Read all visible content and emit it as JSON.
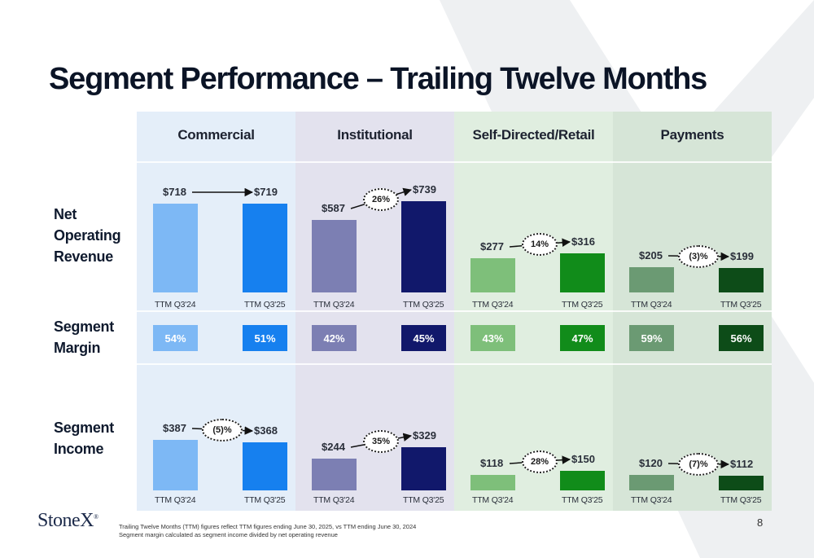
{
  "title": "Segment Performance – Trailing Twelve Months",
  "row_labels": {
    "net_operating_revenue": [
      "Net",
      "Operating",
      "Revenue"
    ],
    "segment_margin": [
      "Segment",
      "Margin"
    ],
    "segment_income": [
      "Segment",
      "Income"
    ]
  },
  "colors": {
    "commercial_bg": "#e4eef9",
    "institutional_bg": "#e3e2ee",
    "selfdirected_bg": "#e0eee0",
    "payments_bg": "#d6e5d7",
    "commercial_prior": "#7db8f5",
    "commercial_current": "#1680ef",
    "institutional_prior": "#7c7fb3",
    "institutional_current": "#11186b",
    "selfdirected_prior": "#7ebf7a",
    "selfdirected_current": "#118c1a",
    "payments_prior": "#6b9a73",
    "payments_current": "#0d4c18"
  },
  "chart_data": {
    "type": "bar",
    "categories": [
      "TTM Q3'24",
      "TTM Q3'25"
    ],
    "segments": [
      {
        "name": "Commercial",
        "colors": [
          "#7db8f5",
          "#1680ef"
        ],
        "net_operating_revenue": {
          "values": [
            718,
            719
          ],
          "labels": [
            "$718",
            "$719"
          ],
          "change": ""
        },
        "segment_margin": [
          "54%",
          "51%"
        ],
        "segment_income": {
          "values": [
            387,
            368
          ],
          "labels": [
            "$387",
            "$368"
          ],
          "change": "(5)%"
        },
        "ttm_labels_top": [
          "TTM Q3'24",
          "TTM Q3'25"
        ],
        "ttm_labels_bottom": [
          "TTM Q3'24",
          "TTM Q3'25"
        ]
      },
      {
        "name": "Institutional",
        "colors": [
          "#7c7fb3",
          "#11186b"
        ],
        "net_operating_revenue": {
          "values": [
            587,
            739
          ],
          "labels": [
            "$587",
            "$739"
          ],
          "change": "26%"
        },
        "segment_margin": [
          "42%",
          "45%"
        ],
        "segment_income": {
          "values": [
            244,
            329
          ],
          "labels": [
            "$244",
            "$329"
          ],
          "change": "35%"
        },
        "ttm_labels_top": [
          "TTM Q3'24",
          "TTM Q3'25"
        ],
        "ttm_labels_bottom": [
          "TTM Q3'24",
          "TTM Q3'25"
        ]
      },
      {
        "name": "Self-Directed/Retail",
        "colors": [
          "#7ebf7a",
          "#118c1a"
        ],
        "net_operating_revenue": {
          "values": [
            277,
            316
          ],
          "labels": [
            "$277",
            "$316"
          ],
          "change": "14%"
        },
        "segment_margin": [
          "43%",
          "47%"
        ],
        "segment_income": {
          "values": [
            118,
            150
          ],
          "labels": [
            "$118",
            "$150"
          ],
          "change": "28%"
        },
        "ttm_labels_top": [
          "TTM Q3'24",
          "TTM Q3'25"
        ],
        "ttm_labels_bottom": [
          "TTM Q3'24",
          "TTM Q3'25"
        ]
      },
      {
        "name": "Payments",
        "colors": [
          "#6b9a73",
          "#0d4c18"
        ],
        "net_operating_revenue": {
          "values": [
            205,
            199
          ],
          "labels": [
            "$205",
            "$199"
          ],
          "change": "(3)%"
        },
        "segment_margin": [
          "59%",
          "56%"
        ],
        "segment_income": {
          "values": [
            120,
            112
          ],
          "labels": [
            "$120",
            "$112"
          ],
          "change": "(7)%"
        },
        "ttm_labels_top": [
          "TTM Q3'24",
          "TTM Q3'25"
        ],
        "ttm_labels_bottom": [
          "TTM Q3'24",
          "TTM Q3'25"
        ]
      }
    ]
  },
  "footer": {
    "logo": "StoneX",
    "logo_mark": "®",
    "note_1": "Trailing Twelve Months (TTM) figures reflect TTM figures ending June 30, 2025, vs TTM ending June 30, 2024",
    "note_2": "Segment margin calculated as segment income divided by net operating revenue",
    "page_number": "8"
  }
}
